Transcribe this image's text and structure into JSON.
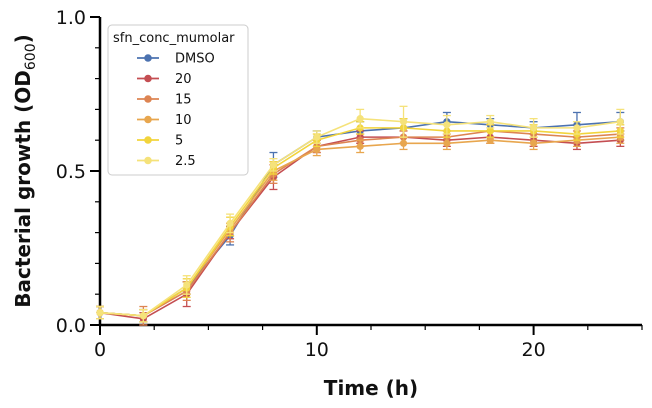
{
  "chart_data": {
    "type": "line",
    "xlabel": "Time (h)",
    "ylabel_main": "Bacterial growth (OD",
    "ylabel_sub": "600",
    "ylabel_end": ")",
    "xlim": [
      0,
      25
    ],
    "ylim": [
      0,
      1.0
    ],
    "x_ticks": [
      0,
      10,
      20
    ],
    "x_tick_labels": [
      "0",
      "10",
      "20"
    ],
    "y_ticks": [
      0,
      0.5,
      1.0
    ],
    "y_tick_labels": [
      "0.0",
      "0.5",
      "1.0"
    ],
    "grid": false,
    "legend": {
      "title": "sfn_conc_mumolar",
      "placement": "top-left"
    },
    "x": [
      0,
      2,
      4,
      6,
      8,
      10,
      12,
      14,
      16,
      18,
      20,
      22,
      24
    ],
    "series": [
      {
        "name": "DMSO",
        "color": "#4c72b0",
        "values": [
          0.04,
          0.03,
          0.12,
          0.29,
          0.52,
          0.61,
          0.63,
          0.64,
          0.66,
          0.65,
          0.64,
          0.65,
          0.66
        ],
        "errors": [
          0.02,
          0.02,
          0.02,
          0.03,
          0.04,
          0.02,
          0.03,
          0.03,
          0.03,
          0.02,
          0.02,
          0.04,
          0.03
        ]
      },
      {
        "name": "20",
        "color": "#c44e52",
        "values": [
          0.04,
          0.02,
          0.1,
          0.3,
          0.48,
          0.58,
          0.61,
          0.61,
          0.6,
          0.61,
          0.6,
          0.59,
          0.6
        ],
        "errors": [
          0.02,
          0.02,
          0.04,
          0.02,
          0.04,
          0.02,
          0.02,
          0.02,
          0.02,
          0.02,
          0.02,
          0.02,
          0.02
        ]
      },
      {
        "name": "15",
        "color": "#dd8452",
        "values": [
          0.04,
          0.03,
          0.11,
          0.3,
          0.49,
          0.58,
          0.6,
          0.61,
          0.61,
          0.63,
          0.62,
          0.61,
          0.62
        ],
        "errors": [
          0.02,
          0.03,
          0.03,
          0.03,
          0.03,
          0.02,
          0.02,
          0.02,
          0.02,
          0.02,
          0.02,
          0.02,
          0.02
        ]
      },
      {
        "name": "10",
        "color": "#e8a64e",
        "values": [
          0.04,
          0.03,
          0.12,
          0.31,
          0.5,
          0.57,
          0.58,
          0.59,
          0.59,
          0.6,
          0.59,
          0.6,
          0.61
        ],
        "errors": [
          0.02,
          0.02,
          0.02,
          0.02,
          0.03,
          0.02,
          0.02,
          0.02,
          0.02,
          0.01,
          0.02,
          0.02,
          0.02
        ]
      },
      {
        "name": "5",
        "color": "#f2d43c",
        "values": [
          0.04,
          0.03,
          0.12,
          0.32,
          0.51,
          0.6,
          0.64,
          0.64,
          0.63,
          0.63,
          0.63,
          0.62,
          0.63
        ],
        "errors": [
          0.02,
          0.02,
          0.03,
          0.03,
          0.02,
          0.02,
          0.02,
          0.03,
          0.02,
          0.02,
          0.02,
          0.02,
          0.02
        ]
      },
      {
        "name": "2.5",
        "color": "#f5e27a",
        "values": [
          0.04,
          0.03,
          0.13,
          0.33,
          0.52,
          0.61,
          0.67,
          0.66,
          0.65,
          0.66,
          0.64,
          0.64,
          0.66
        ],
        "errors": [
          0.02,
          0.02,
          0.03,
          0.03,
          0.02,
          0.02,
          0.03,
          0.05,
          0.03,
          0.02,
          0.03,
          0.02,
          0.04
        ]
      }
    ]
  }
}
